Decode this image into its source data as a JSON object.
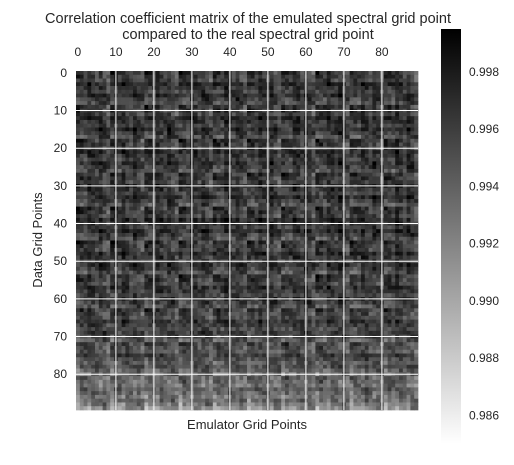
{
  "chart_data": {
    "type": "heatmap",
    "title": "Correlation coefficient matrix of the emulated spectral grid point",
    "subtitle": "compared to the real spectral grid point",
    "xlabel": "Emulator Grid Points",
    "ylabel": "Data Grid Points",
    "x_axis_position": "top",
    "xlim": [
      0,
      90
    ],
    "ylim": [
      0,
      90
    ],
    "xticks": [
      0,
      10,
      20,
      30,
      40,
      50,
      60,
      70,
      80
    ],
    "yticks": [
      0,
      10,
      20,
      30,
      40,
      50,
      60,
      70,
      80
    ],
    "rows": 90,
    "cols": 90,
    "colormap": "gray_r",
    "vmin": 0.985,
    "vmax": 0.9995,
    "colorbar_ticks": [
      0.998,
      0.996,
      0.994,
      0.992,
      0.99,
      0.988,
      0.986
    ],
    "block_size": 9,
    "grid": true,
    "grid_color": "#ffffff",
    "value_range_observed": [
      0.985,
      0.9995
    ]
  }
}
